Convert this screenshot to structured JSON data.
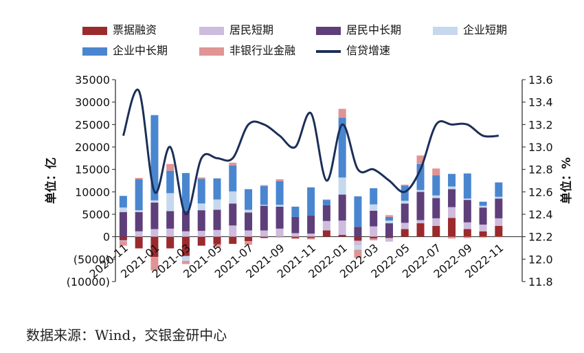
{
  "source_text": "数据来源：Wind，交银金研中心",
  "chart_data": {
    "type": "bar",
    "stacked": true,
    "categories": [
      "2020-11",
      "2020-12",
      "2021-01",
      "2021-02",
      "2021-03",
      "2021-04",
      "2021-05",
      "2021-06",
      "2021-07",
      "2021-08",
      "2021-09",
      "2021-10",
      "2021-11",
      "2021-12",
      "2022-01",
      "2022-02",
      "2022-03",
      "2022-04",
      "2022-05",
      "2022-06",
      "2022-07",
      "2022-08",
      "2022-09",
      "2022-10",
      "2022-11",
      "2022-12"
    ],
    "tick_labels": [
      "2020-11",
      "2021-01",
      "2021-03",
      "2021-05",
      "2021-07",
      "2021-09",
      "2021-11",
      "2022-01",
      "2022-03",
      "2022-05",
      "2022-07",
      "2022-09",
      "2022-11"
    ],
    "series": [
      {
        "name": "票据融资",
        "color": "#9b2a2d",
        "values": [
          -800,
          -2600,
          -4500,
          -2600,
          -4300,
          -2000,
          -1700,
          -1600,
          -1000,
          -300,
          -100,
          -300,
          -300,
          1400,
          400,
          -900,
          -400,
          -300,
          1700,
          3000,
          2400,
          4200,
          1700,
          1200,
          2400,
          0
        ]
      },
      {
        "name": "居民短期",
        "color": "#cdbcdd",
        "values": [
          -200,
          1200,
          1700,
          1800,
          1200,
          1300,
          1500,
          2500,
          1400,
          1400,
          1800,
          800,
          700,
          2100,
          3200,
          -1000,
          2300,
          -800,
          1400,
          700,
          1700,
          2400,
          1500,
          1500,
          1700,
          0
        ]
      },
      {
        "name": "居民中长期",
        "color": "#5e3f7a",
        "values": [
          5500,
          4300,
          5900,
          3900,
          4600,
          4600,
          4500,
          4900,
          4000,
          5500,
          4900,
          3600,
          4000,
          3500,
          5800,
          2200,
          3500,
          3000,
          4300,
          6300,
          4500,
          4000,
          5000,
          3800,
          4400,
          0
        ]
      },
      {
        "name": "企业短期",
        "color": "#c6d8ee",
        "values": [
          1000,
          400,
          500,
          4000,
          -1100,
          1500,
          2300,
          2700,
          600,
          200,
          400,
          0,
          0,
          0,
          3800,
          -1000,
          1400,
          600,
          600,
          400,
          600,
          600,
          300,
          400,
          400,
          0
        ]
      },
      {
        "name": "企业中长期",
        "color": "#4a86d0",
        "values": [
          2600,
          6900,
          19000,
          5000,
          8400,
          5500,
          4700,
          5800,
          4600,
          4200,
          5300,
          2300,
          6300,
          1200,
          13300,
          6800,
          3600,
          800,
          3400,
          5800,
          4500,
          2800,
          5600,
          900,
          3200,
          0
        ]
      },
      {
        "name": "非银行业金融",
        "color": "#e09494",
        "values": [
          -1000,
          300,
          -3000,
          1500,
          -700,
          300,
          -600,
          600,
          -800,
          200,
          400,
          -200,
          -300,
          100,
          2000,
          -1800,
          -400,
          400,
          200,
          1900,
          1500,
          -400,
          -300,
          -200,
          -100,
          0
        ]
      }
    ],
    "line_series": {
      "name": "信贷增速",
      "color": "#1b2f57",
      "values": [
        13.1,
        13.5,
        12.6,
        13.0,
        12.4,
        12.9,
        12.9,
        12.9,
        13.2,
        13.2,
        13.1,
        13.0,
        13.3,
        12.7,
        13.2,
        12.8,
        12.8,
        12.7,
        12.6,
        12.8,
        13.2,
        13.2,
        13.2,
        13.1,
        13.1
      ]
    },
    "y_left": {
      "label": "单位：亿",
      "min": -10000,
      "max": 35000,
      "step": 5000,
      "tick_labels": [
        "(10000)",
        "(5000)",
        "0",
        "5000",
        "10000",
        "15000",
        "20000",
        "25000",
        "30000",
        "35000"
      ]
    },
    "y_right": {
      "label": "单位：%",
      "min": 11.8,
      "max": 13.6,
      "step": 0.2,
      "tick_labels": [
        "11.8",
        "12.0",
        "12.2",
        "12.4",
        "12.6",
        "12.8",
        "13.0",
        "13.2",
        "13.4",
        "13.6"
      ]
    },
    "legend_position": "top",
    "grid": false
  }
}
